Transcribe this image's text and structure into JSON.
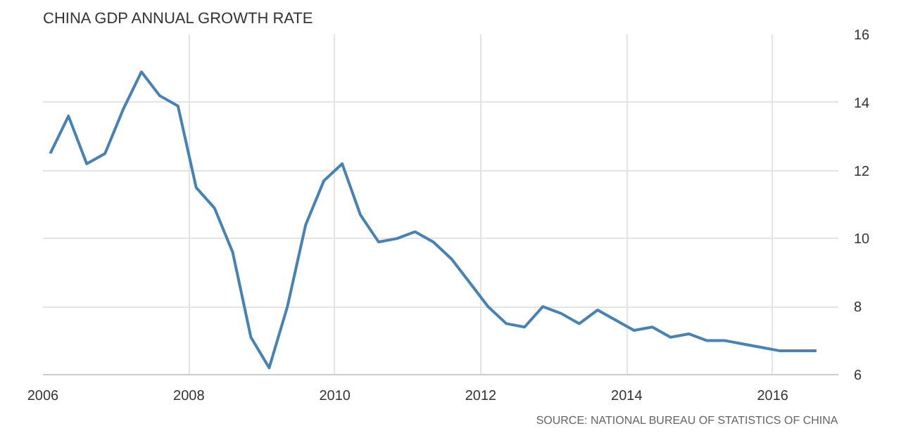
{
  "chart_data": {
    "type": "line",
    "title": "CHINA GDP ANNUAL GROWTH RATE",
    "x": [
      2006.1,
      2006.35,
      2006.6,
      2006.85,
      2007.1,
      2007.35,
      2007.6,
      2007.85,
      2008.1,
      2008.35,
      2008.6,
      2008.85,
      2009.1,
      2009.35,
      2009.6,
      2009.85,
      2010.1,
      2010.35,
      2010.6,
      2010.85,
      2011.1,
      2011.35,
      2011.6,
      2011.85,
      2012.1,
      2012.35,
      2012.6,
      2012.85,
      2013.1,
      2013.35,
      2013.6,
      2013.85,
      2014.1,
      2014.35,
      2014.6,
      2014.85,
      2015.1,
      2015.35,
      2015.6,
      2015.85,
      2016.1,
      2016.35,
      2016.6
    ],
    "series": [
      {
        "color": "#4682b4",
        "values": [
          12.5,
          13.6,
          12.2,
          12.5,
          13.8,
          14.9,
          14.2,
          13.9,
          11.5,
          10.9,
          9.6,
          7.1,
          6.2,
          8.0,
          10.4,
          11.7,
          12.2,
          10.7,
          9.9,
          10.0,
          10.2,
          9.9,
          9.4,
          8.7,
          8.0,
          7.5,
          7.4,
          8.0,
          7.8,
          7.5,
          7.9,
          7.6,
          7.3,
          7.4,
          7.1,
          7.2,
          7.0,
          7.0,
          6.9,
          6.8,
          6.7,
          6.7,
          6.7
        ]
      }
    ],
    "xlim": [
      2006,
      2016.9
    ],
    "xticks": [
      2006,
      2008,
      2010,
      2012,
      2014,
      2016
    ],
    "ylim": [
      6,
      16
    ],
    "yticks": [
      6,
      8,
      10,
      12,
      14,
      16
    ],
    "grid": true,
    "marker": "none",
    "line_style": "solid",
    "annotations": [
      "SOURCE: NATIONAL BUREAU OF STATISTICS OF CHINA"
    ]
  }
}
